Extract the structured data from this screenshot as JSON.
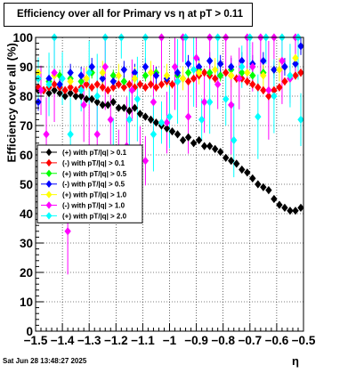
{
  "title": "Efficiency over all for Primary vs    η at pT > 0.11",
  "timestamp": "Sat Jun 28 13:48:27 2025",
  "chart_data": {
    "type": "scatter",
    "title": "Efficiency over all for Primary vs    η at pT > 0.11",
    "xlabel": "η",
    "ylabel": "Efficiency over all (%)",
    "xlim": [
      -1.5,
      -0.5
    ],
    "ylim": [
      0,
      100
    ],
    "x_ticks": [
      "−1.5",
      "−1.4",
      "−1.3",
      "−1.2",
      "−1.1",
      "−1",
      "−0.9",
      "−0.8",
      "−0.7",
      "−0.6",
      "−0.5"
    ],
    "y_ticks": [
      "0",
      "10",
      "20",
      "30",
      "40",
      "50",
      "60",
      "70",
      "80",
      "90",
      "100"
    ],
    "grid": true,
    "legend_position": "left-middle",
    "series": [
      {
        "name": "(+) with pT/|q| > 0.1",
        "color": "#000000",
        "marker": "diamond",
        "x": [
          -1.49,
          -1.47,
          -1.45,
          -1.43,
          -1.41,
          -1.39,
          -1.37,
          -1.35,
          -1.33,
          -1.31,
          -1.29,
          -1.27,
          -1.25,
          -1.23,
          -1.21,
          -1.19,
          -1.17,
          -1.15,
          -1.13,
          -1.11,
          -1.09,
          -1.07,
          -1.05,
          -1.03,
          -1.01,
          -0.99,
          -0.97,
          -0.95,
          -0.93,
          -0.91,
          -0.89,
          -0.87,
          -0.85,
          -0.83,
          -0.81,
          -0.79,
          -0.77,
          -0.75,
          -0.73,
          -0.71,
          -0.69,
          -0.67,
          -0.65,
          -0.63,
          -0.61,
          -0.59,
          -0.57,
          -0.55,
          -0.53,
          -0.51
        ],
        "y": [
          82,
          82,
          81,
          82,
          81,
          80,
          81,
          80,
          80,
          79,
          79,
          78,
          77,
          77,
          78,
          76,
          76,
          75,
          76,
          74,
          73,
          72,
          71,
          70,
          69,
          68,
          67,
          65,
          66,
          64,
          65,
          63,
          63,
          62,
          61,
          59,
          58,
          57,
          55,
          54,
          52,
          50,
          49,
          48,
          45,
          43,
          42,
          41,
          41,
          42
        ]
      },
      {
        "name": "(-) with pT/|q| > 0.1",
        "color": "#ff0000",
        "marker": "diamond",
        "x": [
          -1.49,
          -1.47,
          -1.45,
          -1.43,
          -1.41,
          -1.39,
          -1.37,
          -1.35,
          -1.33,
          -1.31,
          -1.29,
          -1.27,
          -1.25,
          -1.23,
          -1.21,
          -1.19,
          -1.17,
          -1.15,
          -1.13,
          -1.11,
          -1.09,
          -1.07,
          -1.05,
          -1.03,
          -1.01,
          -0.99,
          -0.97,
          -0.95,
          -0.93,
          -0.91,
          -0.89,
          -0.87,
          -0.85,
          -0.83,
          -0.81,
          -0.79,
          -0.77,
          -0.75,
          -0.73,
          -0.71,
          -0.69,
          -0.67,
          -0.65,
          -0.63,
          -0.61,
          -0.59,
          -0.57,
          -0.55,
          -0.53,
          -0.51
        ],
        "y": [
          83,
          82,
          83,
          84,
          83,
          82,
          83,
          82,
          83,
          84,
          83,
          84,
          83,
          82,
          83,
          84,
          83,
          84,
          83,
          84,
          83,
          84,
          83,
          84,
          85,
          84,
          85,
          86,
          85,
          86,
          87,
          88,
          87,
          86,
          87,
          88,
          87,
          86,
          86,
          85,
          84,
          83,
          82,
          80,
          82,
          83,
          85,
          86,
          87,
          88
        ]
      },
      {
        "name": "(+) with pT/|q| > 0.5",
        "color": "#00ff00",
        "marker": "diamond",
        "x": [
          -1.49,
          -1.45,
          -1.41,
          -1.37,
          -1.33,
          -1.29,
          -1.25,
          -1.21,
          -1.17,
          -1.13,
          -1.09,
          -1.05,
          -1.01,
          -0.97,
          -0.93,
          -0.89,
          -0.85,
          -0.81,
          -0.77,
          -0.73,
          -0.69,
          -0.65,
          -0.61,
          -0.57,
          -0.53
        ],
        "y": [
          86,
          85,
          87,
          86,
          85,
          88,
          86,
          87,
          85,
          86,
          87,
          88,
          86,
          87,
          88,
          89,
          88,
          87,
          89,
          88,
          87,
          88,
          89,
          90,
          91
        ]
      },
      {
        "name": "(-) with pT/|q| > 0.5",
        "color": "#0000ff",
        "marker": "diamond",
        "x": [
          -1.49,
          -1.45,
          -1.41,
          -1.37,
          -1.33,
          -1.29,
          -1.25,
          -1.21,
          -1.17,
          -1.13,
          -1.09,
          -1.05,
          -1.01,
          -0.97,
          -0.93,
          -0.89,
          -0.85,
          -0.81,
          -0.77,
          -0.73,
          -0.69,
          -0.65,
          -0.61,
          -0.57,
          -0.53,
          -0.51
        ],
        "y": [
          78,
          86,
          84,
          88,
          87,
          90,
          86,
          85,
          89,
          88,
          90,
          87,
          86,
          88,
          91,
          90,
          92,
          91,
          90,
          92,
          91,
          92,
          89,
          90,
          91,
          97
        ]
      },
      {
        "name": "(+) with pT/|q| > 1.0",
        "color": "#ffff00",
        "marker": "diamond",
        "x": [
          -1.49,
          -1.43,
          -1.37,
          -1.31,
          -1.25,
          -1.19,
          -1.13,
          -1.07,
          -1.01,
          -0.95,
          -0.89,
          -0.83,
          -0.77,
          -0.71,
          -0.65,
          -0.59,
          -0.53
        ],
        "y": [
          88,
          87,
          85,
          86,
          88,
          87,
          86,
          88,
          87,
          86,
          88,
          89,
          87,
          88,
          87,
          89,
          93
        ]
      },
      {
        "name": "(-) with pT/|q| > 1.0",
        "color": "#ff00ff",
        "marker": "diamond",
        "x": [
          -1.48,
          -1.46,
          -1.43,
          -1.4,
          -1.38,
          -1.35,
          -1.32,
          -1.3,
          -1.27,
          -1.24,
          -1.22,
          -1.19,
          -1.16,
          -1.14,
          -1.11,
          -1.09,
          -1.06,
          -1.03,
          -1.01,
          -0.98,
          -0.95,
          -0.93,
          -0.9,
          -0.87,
          -0.85,
          -0.82,
          -0.79,
          -0.77,
          -0.74,
          -0.71,
          -0.69,
          -0.66,
          -0.63,
          -0.61,
          -0.58,
          -0.55,
          -0.53
        ],
        "y": [
          82,
          67,
          88,
          52,
          34,
          47,
          77,
          62,
          67,
          90,
          72,
          56,
          63,
          82,
          55,
          58,
          78,
          100,
          71,
          90,
          100,
          73,
          93,
          78,
          100,
          84,
          100,
          77,
          86,
          100,
          90,
          100,
          82,
          100,
          92,
          86,
          100
        ]
      },
      {
        "name": "(+) with pT/|q| > 2.0",
        "color": "#00ffff",
        "marker": "diamond",
        "x": [
          -1.49,
          -1.45,
          -1.43,
          -1.4,
          -1.37,
          -1.33,
          -1.3,
          -1.27,
          -1.24,
          -1.21,
          -1.18,
          -1.15,
          -1.12,
          -1.09,
          -1.06,
          -1.03,
          -1.0,
          -0.97,
          -0.94,
          -0.91,
          -0.88,
          -0.85,
          -0.82,
          -0.79,
          -0.76,
          -0.73,
          -0.7,
          -0.67,
          -0.64,
          -0.61,
          -0.58,
          -0.55,
          -0.52,
          -0.51
        ],
        "y": [
          86,
          84,
          100,
          86,
          67,
          82,
          88,
          80,
          100,
          60,
          100,
          72,
          79,
          100,
          67,
          71,
          73,
          85,
          100,
          89,
          72,
          78,
          100,
          79,
          65,
          90,
          100,
          73,
          100,
          80,
          100,
          87,
          100,
          72
        ]
      }
    ]
  }
}
